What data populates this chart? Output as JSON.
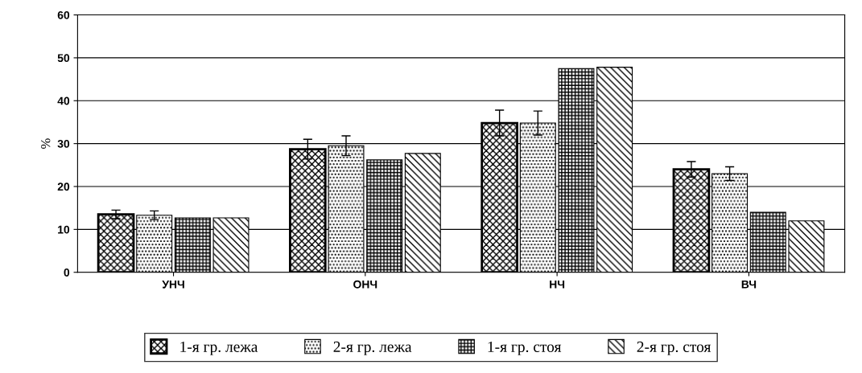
{
  "chart_data": {
    "type": "bar",
    "ylabel": "%",
    "categories": [
      "УНЧ",
      "ОНЧ",
      "НЧ",
      "ВЧ"
    ],
    "series": [
      {
        "name": "1-я гр. лежа",
        "color": "#000000",
        "values": [
          13.5,
          28.7,
          34.8,
          24.0
        ],
        "errors": [
          1.0,
          2.3,
          3.0,
          1.8
        ]
      },
      {
        "name": "2-я гр. лежа",
        "color": "#000000",
        "values": [
          13.3,
          29.5,
          34.8,
          23.0
        ],
        "errors": [
          1.0,
          2.3,
          2.8,
          1.6
        ]
      },
      {
        "name": "1-я гр. стоя",
        "color": "#000000",
        "values": [
          12.7,
          26.2,
          47.5,
          14.0
        ]
      },
      {
        "name": "2-я гр. стоя",
        "color": "#000000",
        "values": [
          12.7,
          27.7,
          47.8,
          12.0
        ]
      }
    ],
    "ylim": [
      0,
      60
    ],
    "yticks": [
      0,
      10,
      20,
      30,
      40,
      50,
      60
    ],
    "grid": "y",
    "legend": "bottom"
  }
}
